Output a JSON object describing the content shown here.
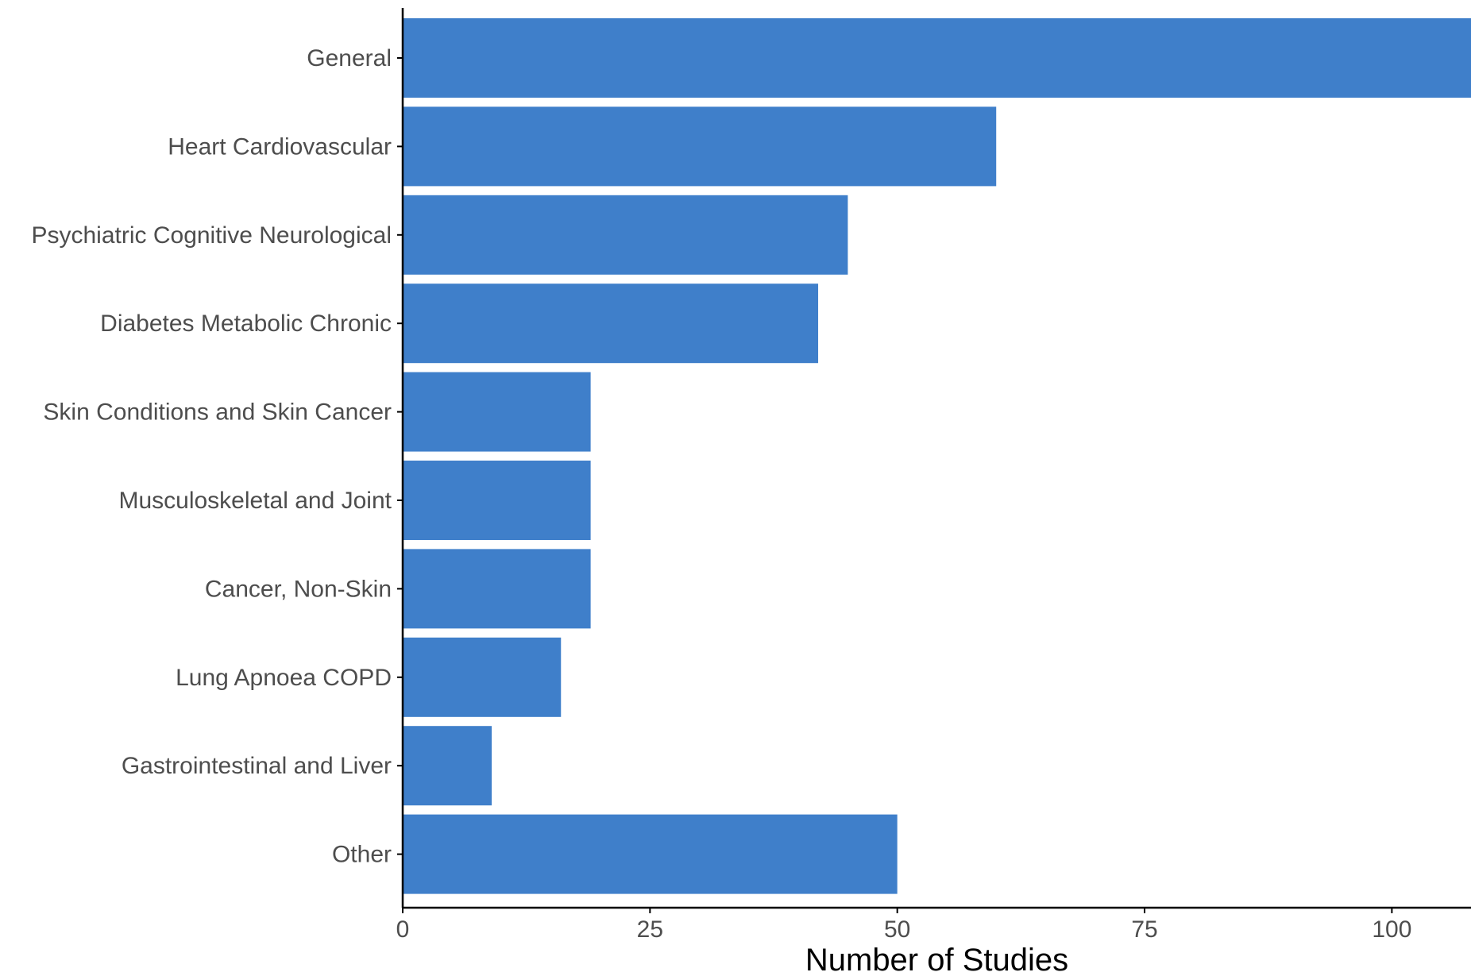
{
  "chart_data": {
    "type": "bar",
    "orientation": "horizontal",
    "title": "",
    "xlabel": "Number of Studies",
    "ylabel": "",
    "categories": [
      "General",
      "Heart Cardiovascular",
      "Psychiatric Cognitive Neurological",
      "Diabetes Metabolic Chronic",
      "Skin Conditions and Skin Cancer",
      "Musculoskeletal and Joint",
      "Cancer, Non-Skin",
      "Lung Apnoea COPD",
      "Gastrointestinal and Liver",
      "Other"
    ],
    "values": [
      108,
      60,
      45,
      42,
      19,
      19,
      19,
      16,
      9,
      50
    ],
    "xlim": [
      0,
      108
    ],
    "xticks": [
      0,
      25,
      50,
      75,
      100
    ],
    "xtick_labels": [
      "0",
      "25",
      "50",
      "75",
      "100"
    ],
    "bar_color": "#3f7fca",
    "axis_color": "#000000",
    "tick_label_color": "#4d4d4d",
    "grid": false,
    "legend": "none"
  }
}
